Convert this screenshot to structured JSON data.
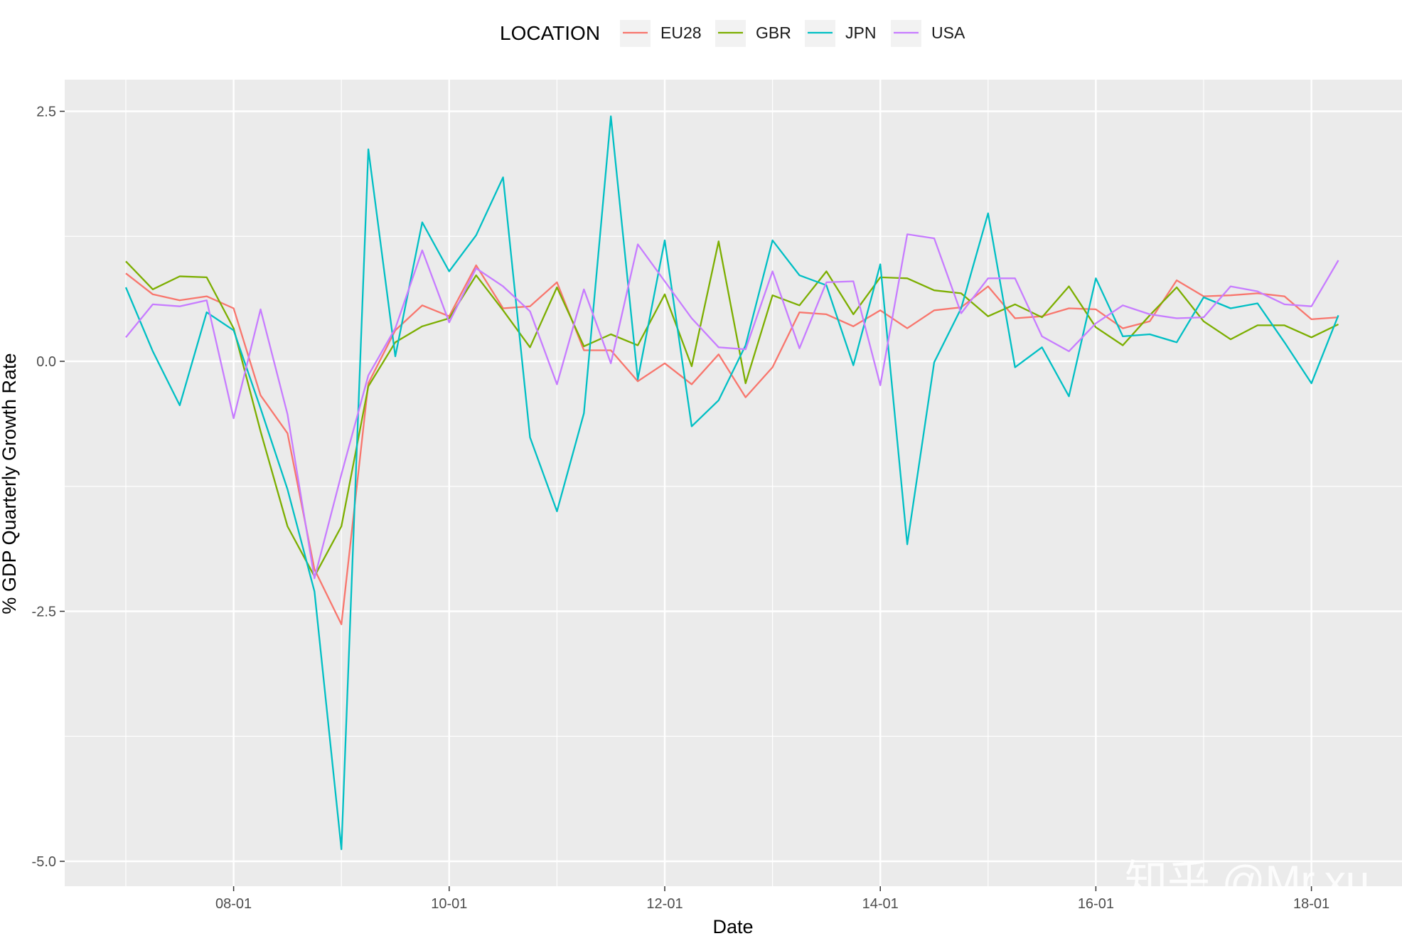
{
  "chart_data": {
    "type": "line",
    "title": "",
    "xlabel": "Date",
    "ylabel": "% GDP Quarterly Growth Rate",
    "x_ticks": [
      "08-01",
      "10-01",
      "12-01",
      "14-01",
      "16-01",
      "18-01"
    ],
    "y_ticks": [
      2.5,
      0.0,
      -2.5,
      -5.0
    ],
    "ylim": [
      -5.25,
      2.8
    ],
    "legend": {
      "title": "LOCATION",
      "position": "top"
    },
    "grid": true,
    "x": [
      "2007-Q1",
      "2007-Q2",
      "2007-Q3",
      "2007-Q4",
      "2008-Q1",
      "2008-Q2",
      "2008-Q3",
      "2008-Q4",
      "2009-Q1",
      "2009-Q2",
      "2009-Q3",
      "2009-Q4",
      "2010-Q1",
      "2010-Q2",
      "2010-Q3",
      "2010-Q4",
      "2011-Q1",
      "2011-Q2",
      "2011-Q3",
      "2011-Q4",
      "2012-Q1",
      "2012-Q2",
      "2012-Q3",
      "2012-Q4",
      "2013-Q1",
      "2013-Q2",
      "2013-Q3",
      "2013-Q4",
      "2014-Q1",
      "2014-Q2",
      "2014-Q3",
      "2014-Q4",
      "2015-Q1",
      "2015-Q2",
      "2015-Q3",
      "2015-Q4",
      "2016-Q1",
      "2016-Q2",
      "2016-Q3",
      "2016-Q4",
      "2017-Q1",
      "2017-Q2",
      "2017-Q3",
      "2017-Q4",
      "2018-Q1",
      "2018-Q2"
    ],
    "series": [
      {
        "name": "EU28",
        "color": "#F8766D",
        "values": [
          0.88,
          0.67,
          0.61,
          0.65,
          0.53,
          -0.34,
          -0.72,
          -2.08,
          -2.63,
          -0.22,
          0.31,
          0.56,
          0.45,
          0.96,
          0.53,
          0.55,
          0.79,
          0.11,
          0.11,
          -0.2,
          -0.02,
          -0.23,
          0.07,
          -0.36,
          -0.06,
          0.49,
          0.47,
          0.35,
          0.51,
          0.33,
          0.51,
          0.54,
          0.75,
          0.43,
          0.45,
          0.53,
          0.52,
          0.33,
          0.4,
          0.81,
          0.65,
          0.66,
          0.68,
          0.65,
          0.42,
          0.44
        ]
      },
      {
        "name": "GBR",
        "color": "#7CAE00",
        "values": [
          1.0,
          0.72,
          0.85,
          0.84,
          0.33,
          -0.7,
          -1.65,
          -2.15,
          -1.65,
          -0.25,
          0.19,
          0.35,
          0.43,
          0.86,
          0.51,
          0.14,
          0.74,
          0.15,
          0.27,
          0.16,
          0.67,
          -0.05,
          1.2,
          -0.22,
          0.66,
          0.56,
          0.9,
          0.47,
          0.84,
          0.83,
          0.71,
          0.68,
          0.45,
          0.57,
          0.44,
          0.75,
          0.34,
          0.16,
          0.46,
          0.74,
          0.4,
          0.22,
          0.36,
          0.36,
          0.24,
          0.37
        ]
      },
      {
        "name": "JPN",
        "color": "#00BFC4",
        "values": [
          0.74,
          0.1,
          -0.44,
          0.49,
          0.31,
          -0.47,
          -1.28,
          -2.3,
          -4.88,
          2.12,
          0.05,
          1.39,
          0.9,
          1.26,
          1.84,
          -0.76,
          -1.5,
          -0.52,
          2.45,
          -0.18,
          1.21,
          -0.65,
          -0.39,
          0.16,
          1.21,
          0.86,
          0.76,
          -0.04,
          0.97,
          -1.83,
          -0.01,
          0.53,
          1.48,
          -0.06,
          0.14,
          -0.35,
          0.83,
          0.25,
          0.27,
          0.19,
          0.64,
          0.53,
          0.58,
          0.19,
          -0.22,
          0.46
        ]
      },
      {
        "name": "USA",
        "color": "#C77CFF",
        "values": [
          0.24,
          0.57,
          0.55,
          0.61,
          -0.57,
          0.52,
          -0.53,
          -2.17,
          -1.13,
          -0.14,
          0.33,
          1.11,
          0.39,
          0.93,
          0.75,
          0.5,
          -0.23,
          0.72,
          -0.02,
          1.17,
          0.8,
          0.43,
          0.14,
          0.12,
          0.9,
          0.13,
          0.79,
          0.8,
          -0.24,
          1.27,
          1.23,
          0.48,
          0.83,
          0.83,
          0.25,
          0.1,
          0.38,
          0.56,
          0.47,
          0.43,
          0.44,
          0.75,
          0.7,
          0.57,
          0.55,
          1.01
        ]
      }
    ]
  },
  "watermark": "知乎 @Mr.xu"
}
